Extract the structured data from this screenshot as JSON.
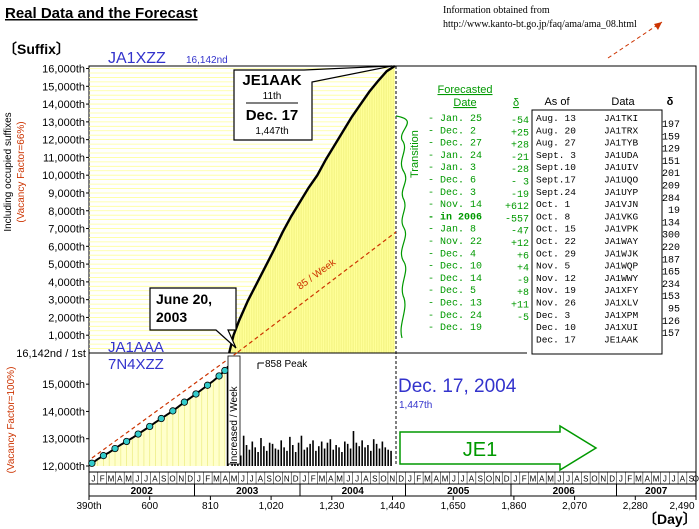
{
  "title": "Real Data and the Forecast",
  "source": {
    "line1": "Information obtained from",
    "line2": "http://www.kanto-bt.go.jp/faq/ama/ama_08.html"
  },
  "axis": {
    "ylabel_top": "〔Suffix〕",
    "ylabel_upper": "Including occupied suffixes",
    "ylabel_upper_factor": "(Vacancy Factor=66%)",
    "ylabel_lower_factor": "(Vacancy Factor=100%)",
    "xlabel": "〔Day〕",
    "upper_ticks": [
      "16,000th",
      "15,000th",
      "14,000th",
      "13,000th",
      "12,000th",
      "11,000th",
      "10,000th",
      "9,000th",
      "8,000th",
      "7,000th",
      "6,000th",
      "5,000th",
      "4,000th",
      "3,000th",
      "2,000th",
      "1,000th"
    ],
    "split_tick": "16,142nd / 1st",
    "lower_ticks": [
      "15,000th",
      "14,000th",
      "13,000th",
      "12,000th"
    ],
    "months": [
      "J",
      "F",
      "M",
      "A",
      "M",
      "J",
      "J",
      "A",
      "S",
      "O",
      "N",
      "D"
    ],
    "years": [
      "2002",
      "2003",
      "2004",
      "2005",
      "2006",
      "2007"
    ],
    "day_ticks": [
      "390th",
      "600",
      "810",
      "1,020",
      "1,230",
      "1,440",
      "1,650",
      "1,860",
      "2,070",
      "2,280",
      "2,490"
    ]
  },
  "labels": {
    "ja1xzz": "JA1XZZ",
    "ja1xzz_count": "16,142nd",
    "ja1aaa": "JA1AAA",
    "n7xzz": "7N4XZZ",
    "june_line1": "June 20,",
    "june_line2": "2003",
    "callout_call": "JE1AAK",
    "callout_count1": "11th",
    "callout_date": "Dec. 17",
    "callout_count2": "1,447th",
    "dec_big": "Dec. 17, 2004",
    "dec_count": "1,447th",
    "rate": "85 / Week",
    "peak": "858 Peak",
    "increased": "Increased / Week",
    "transition": "Transition",
    "je1": "JE1"
  },
  "forecast": {
    "header_date": "Forecasted Date",
    "header_delta": "δ",
    "rows": [
      {
        "date": "Jan. 25",
        "delta": "-54"
      },
      {
        "date": "Dec.  2",
        "delta": "+25"
      },
      {
        "date": "Dec. 27",
        "delta": "+28"
      },
      {
        "date": "Jan. 24",
        "delta": "-21"
      },
      {
        "date": "Jan.  3",
        "delta": "-28"
      },
      {
        "date": "Dec.  6",
        "delta": "- 3"
      },
      {
        "date": "Dec.  3",
        "delta": "-19"
      },
      {
        "date": "Nov. 14",
        "delta": "+612"
      },
      {
        "date": "in 2006",
        "delta": "-557"
      },
      {
        "date": "Jan.  8",
        "delta": "-47"
      },
      {
        "date": "Nov. 22",
        "delta": "+12"
      },
      {
        "date": "Dec.  4",
        "delta": "+6"
      },
      {
        "date": "Dec. 10",
        "delta": "+4"
      },
      {
        "date": "Dec. 14",
        "delta": "-9"
      },
      {
        "date": "Dec.  5",
        "delta": "+8"
      },
      {
        "date": "Dec. 13",
        "delta": "+11"
      },
      {
        "date": "Dec. 24",
        "delta": "-5"
      },
      {
        "date": "Dec. 19",
        "delta": ""
      }
    ]
  },
  "actual": {
    "header_asof": "As of",
    "header_data": "Data",
    "header_delta": "δ",
    "rows": [
      {
        "asof": "Aug. 13",
        "data": "JA1TKI",
        "delta": "197"
      },
      {
        "asof": "Aug. 20",
        "data": "JA1TRX",
        "delta": "159"
      },
      {
        "asof": "Aug. 27",
        "data": "JA1TYB",
        "delta": "129"
      },
      {
        "asof": "Sept. 3",
        "data": "JA1UDA",
        "delta": "151"
      },
      {
        "asof": "Sept.10",
        "data": "JA1UIV",
        "delta": "201"
      },
      {
        "asof": "Sept.17",
        "data": "JA1UQO",
        "delta": "209"
      },
      {
        "asof": "Sept.24",
        "data": "JA1UYP",
        "delta": "284"
      },
      {
        "asof": "Oct.  1",
        "data": "JA1VJN",
        "delta": "19"
      },
      {
        "asof": "Oct.  8",
        "data": "JA1VKG",
        "delta": "134"
      },
      {
        "asof": "Oct. 15",
        "data": "JA1VPK",
        "delta": "300"
      },
      {
        "asof": "Oct. 22",
        "data": "JA1WAY",
        "delta": "220"
      },
      {
        "asof": "Oct. 29",
        "data": "JA1WJK",
        "delta": "187"
      },
      {
        "asof": "Nov.  5",
        "data": "JA1WQP",
        "delta": "165"
      },
      {
        "asof": "Nov. 12",
        "data": "JA1WWY",
        "delta": "234"
      },
      {
        "asof": "Nov. 19",
        "data": "JA1XFY",
        "delta": "153"
      },
      {
        "asof": "Nov. 26",
        "data": "JA1XLV",
        "delta": "95"
      },
      {
        "asof": "Dec.  3",
        "data": "JA1XPM",
        "delta": "126"
      },
      {
        "asof": "Dec. 10",
        "data": "JA1XUI",
        "delta": "157"
      },
      {
        "asof": "Dec. 17",
        "data": "JE1AAK",
        "delta": ""
      }
    ]
  },
  "chart_data": {
    "type": "line",
    "title": "Real Data and the Forecast",
    "xlabel": "〔Day〕",
    "ylabel": "〔Suffix〕",
    "xlim": [
      390,
      2490
    ],
    "x_ticks": [
      390,
      600,
      810,
      1020,
      1230,
      1440,
      1650,
      1860,
      2070,
      2280,
      2490
    ],
    "ylim_upper": [
      0,
      16142
    ],
    "ylim_lower": [
      12000,
      16142
    ],
    "grid": false,
    "colors": {
      "bars": "#ffff99",
      "line": "#000000",
      "points": "#33cccc",
      "trend": "#cc3300",
      "forecast": "#009900",
      "label": "#3333cc"
    },
    "series": [
      {
        "kind": "lower_segment",
        "x": [
          400,
          420,
          440,
          460,
          480,
          500,
          520,
          540,
          560,
          580,
          600,
          620,
          640,
          660,
          680,
          700,
          720,
          740,
          760,
          780,
          800,
          820,
          840,
          860
        ],
        "y": [
          12100,
          12250,
          12380,
          12500,
          12640,
          12780,
          12900,
          13030,
          13170,
          13310,
          13450,
          13600,
          13740,
          13880,
          14020,
          14180,
          14340,
          14490,
          14640,
          14800,
          14960,
          15120,
          15300,
          15500
        ]
      },
      {
        "kind": "upper_segment",
        "x": [
          875,
          890,
          910,
          940,
          970,
          1000,
          1030,
          1060,
          1090,
          1120,
          1150,
          1180,
          1210,
          1240,
          1270,
          1300,
          1330,
          1360,
          1390,
          1420,
          1448
        ],
        "y": [
          0,
          1000,
          1850,
          2950,
          3900,
          4850,
          5800,
          6800,
          7700,
          8500,
          9300,
          10000,
          10900,
          11700,
          12500,
          13300,
          14000,
          14700,
          15300,
          15850,
          16142
        ]
      },
      {
        "kind": "weekly_increase",
        "x": [
          885,
          895,
          905,
          915,
          925,
          935,
          945,
          955,
          965,
          975,
          985,
          995,
          1005,
          1015,
          1025,
          1035,
          1045,
          1055,
          1065,
          1075,
          1085,
          1095,
          1105,
          1115,
          1125,
          1135,
          1145,
          1155,
          1165,
          1175,
          1185,
          1195,
          1205,
          1215,
          1225,
          1235,
          1245,
          1255,
          1265,
          1275,
          1285,
          1295,
          1305,
          1315,
          1325,
          1335,
          1345,
          1355,
          1365,
          1375,
          1385,
          1395,
          1405,
          1415,
          1425,
          1435
        ],
        "y": [
          120,
          200,
          150,
          90,
          260,
          180,
          140,
          210,
          160,
          120,
          240,
          170,
          130,
          200,
          190,
          150,
          140,
          220,
          160,
          130,
          250,
          180,
          120,
          200,
          260,
          140,
          160,
          190,
          220,
          130,
          170,
          210,
          150,
          200,
          230,
          140,
          180,
          160,
          120,
          210,
          190,
          150,
          300,
          200,
          170,
          220,
          160,
          180,
          130,
          230,
          190,
          150,
          210,
          160,
          140,
          130
        ],
        "peak": 858
      }
    ]
  }
}
